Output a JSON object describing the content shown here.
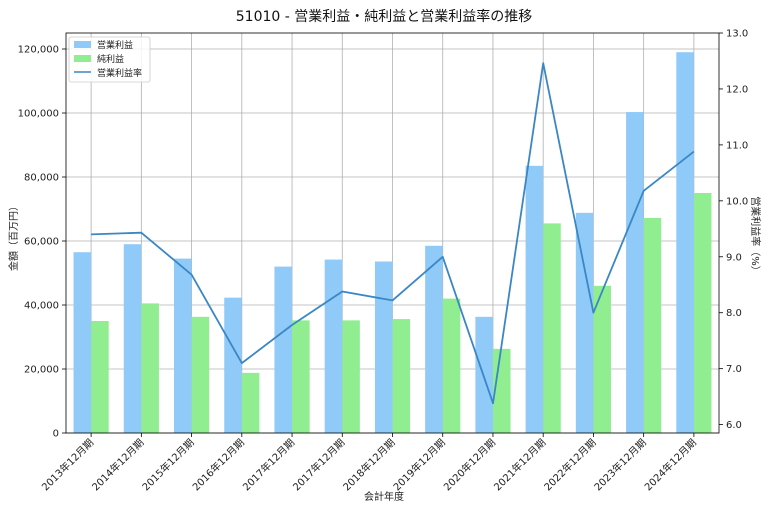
{
  "chart_data": {
    "type": "bar",
    "title": "51010 - 営業利益・純利益と営業利益率の推移",
    "xlabel": "会計年度",
    "ylabel": "金額（百万円）",
    "y2label": "営業利益率（%）",
    "categories": [
      "2013年12月期",
      "2014年12月期",
      "2015年12月期",
      "2016年12月期",
      "2017年12月期",
      "2017年12月期",
      "2018年12月期",
      "2019年12月期",
      "2020年12月期",
      "2021年12月期",
      "2022年12月期",
      "2023年12月期",
      "2024年12月期"
    ],
    "series": [
      {
        "name": "営業利益",
        "type": "bar",
        "axis": "left",
        "color": "#90caf9",
        "values": [
          56500,
          59000,
          54500,
          42300,
          52000,
          54200,
          53600,
          58500,
          36300,
          83500,
          68800,
          100300,
          119000
        ]
      },
      {
        "name": "純利益",
        "type": "bar",
        "axis": "left",
        "color": "#90ee90",
        "values": [
          35000,
          40500,
          36300,
          18800,
          35200,
          35200,
          35600,
          42000,
          26300,
          65500,
          46000,
          67200,
          75000
        ]
      },
      {
        "name": "営業利益率",
        "type": "line",
        "axis": "right",
        "color": "#3a87c4",
        "values": [
          9.4,
          9.43,
          8.68,
          7.1,
          7.78,
          8.38,
          8.22,
          9.0,
          6.38,
          12.46,
          8.0,
          10.18,
          10.88
        ]
      }
    ],
    "ylim": [
      0,
      125000
    ],
    "y2lim": [
      5.85,
      13.0
    ],
    "yticks": [
      0,
      20000,
      40000,
      60000,
      80000,
      100000,
      120000
    ],
    "ytick_labels": [
      "0",
      "20,000",
      "40,000",
      "60,000",
      "80,000",
      "100,000",
      "120,000"
    ],
    "y2ticks": [
      6.0,
      7.0,
      8.0,
      9.0,
      10.0,
      11.0,
      12.0,
      13.0
    ],
    "y2tick_labels": [
      "6.0",
      "7.0",
      "8.0",
      "9.0",
      "10.0",
      "11.0",
      "12.0",
      "13.0"
    ],
    "grid": true,
    "legend": "top-left"
  }
}
